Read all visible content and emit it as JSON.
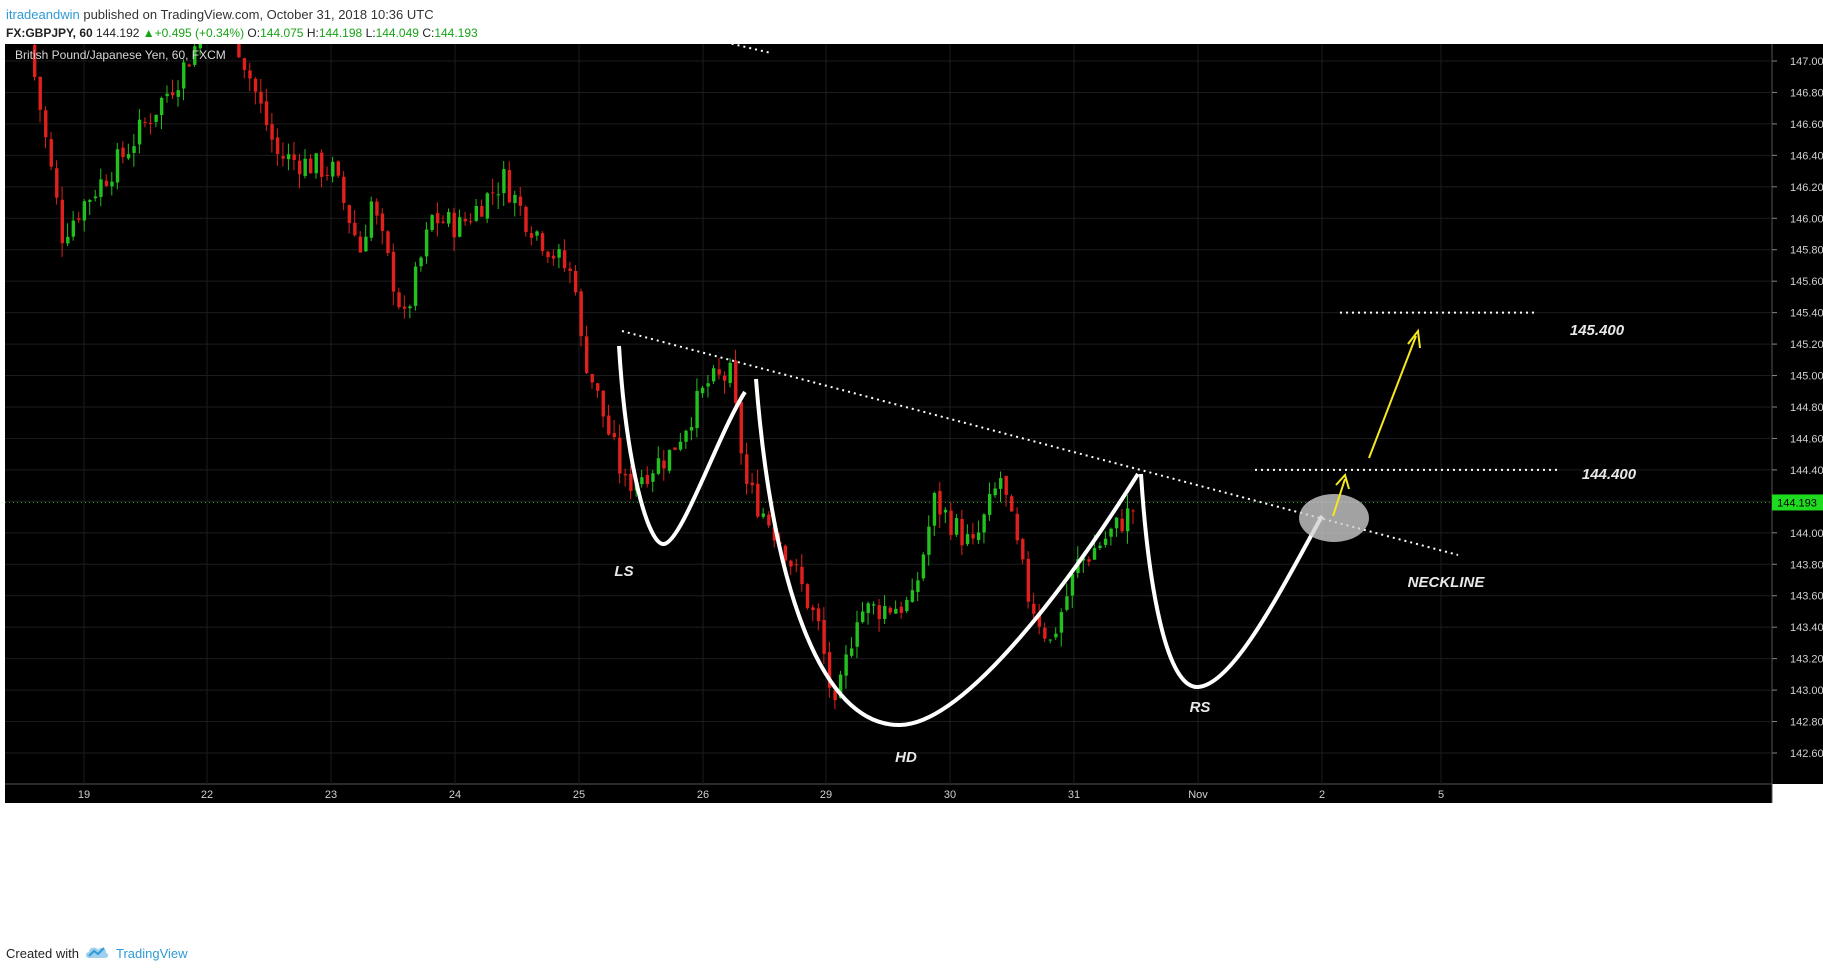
{
  "header": {
    "author": "itradeandwin",
    "published_text": "published on TradingView.com, October 31, 2018 10:36 UTC",
    "symbol": "FX:GBPJPY, 60",
    "last": "144.192",
    "change": "+0.495 (+0.34%)",
    "o_label": "O:",
    "o": "144.075",
    "h_label": "H:",
    "h": "144.198",
    "l_label": "L:",
    "l": "144.049",
    "c_label": "C:",
    "c": "144.193"
  },
  "chart_data": {
    "type": "candlestick",
    "title": "British Pound/Japanese Yen, 60, FXCM",
    "y_ticks": [
      "147.000",
      "146.800",
      "146.600",
      "146.400",
      "146.200",
      "146.000",
      "145.800",
      "145.600",
      "145.400",
      "145.200",
      "145.000",
      "144.800",
      "144.600",
      "144.400",
      "144.200",
      "144.000",
      "143.800",
      "143.600",
      "143.400",
      "143.200",
      "143.000",
      "142.800",
      "142.600"
    ],
    "ylim": [
      142.5,
      147.15
    ],
    "x_ticks": [
      "19",
      "22",
      "23",
      "24",
      "25",
      "26",
      "29",
      "30",
      "31",
      "Nov",
      "2",
      "5"
    ],
    "current_price": "144.193",
    "price_path": [
      [
        147.1,
        0
      ],
      [
        145.9,
        6
      ],
      [
        146.1,
        10
      ],
      [
        146.4,
        17
      ],
      [
        146.9,
        27
      ],
      [
        147.4,
        35
      ],
      [
        146.4,
        45
      ],
      [
        146.3,
        55
      ],
      [
        145.8,
        60
      ],
      [
        146.1,
        62
      ],
      [
        145.35,
        68
      ],
      [
        146.0,
        73
      ],
      [
        145.95,
        78
      ],
      [
        146.25,
        86
      ],
      [
        146.0,
        90
      ],
      [
        145.6,
        99
      ],
      [
        145.2,
        100
      ],
      [
        144.3,
        108
      ],
      [
        144.5,
        116
      ],
      [
        144.95,
        123
      ],
      [
        145.0,
        127
      ],
      [
        144.3,
        130
      ],
      [
        143.9,
        137
      ],
      [
        143.4,
        143
      ],
      [
        142.85,
        146
      ],
      [
        143.5,
        150
      ],
      [
        143.55,
        160
      ],
      [
        144.2,
        164
      ],
      [
        143.9,
        171
      ],
      [
        144.35,
        176
      ],
      [
        143.6,
        181
      ],
      [
        143.3,
        185
      ],
      [
        143.8,
        190
      ],
      [
        144.0,
        196
      ],
      [
        144.15,
        200
      ]
    ],
    "annotations": [
      {
        "text": "LS"
      },
      {
        "text": "HD"
      },
      {
        "text": "RS"
      },
      {
        "text": "NECKLINE"
      },
      {
        "text": "145.400"
      },
      {
        "text": "144.400"
      }
    ],
    "levels": {
      "target": 145.4,
      "neckline_level": 144.4
    },
    "colors": {
      "up": "#22c11f",
      "down": "#e0201d",
      "background": "#000000",
      "pattern": "#ffffff",
      "arrow": "#f5e81f"
    }
  },
  "footer": {
    "created_with": "Created with",
    "brand": "TradingView",
    "logo_icon": "tradingview-cloud-icon"
  }
}
